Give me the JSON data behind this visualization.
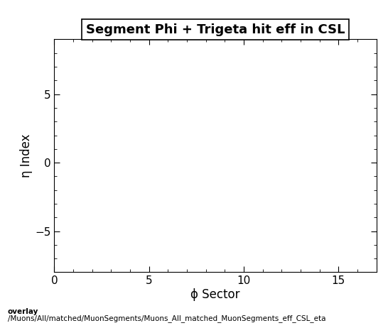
{
  "title": "Segment Phi + Trigeta hit eff in CSL",
  "xlabel": "ϕ Sector",
  "ylabel": "η Index",
  "xlim": [
    0,
    17
  ],
  "ylim": [
    -8,
    9
  ],
  "xticks": [
    0,
    5,
    10,
    15
  ],
  "yticks": [
    -5,
    0,
    5
  ],
  "background_color": "#ffffff",
  "plot_bg_color": "#ffffff",
  "footer_line1": "overlay",
  "footer_line2": "/Muons/All/matched/MuonSegments/Muons_All_matched_MuonSegments_eff_CSL_eta",
  "title_fontsize": 13,
  "axis_label_fontsize": 12,
  "tick_fontsize": 11,
  "footer_fontsize": 7.5
}
